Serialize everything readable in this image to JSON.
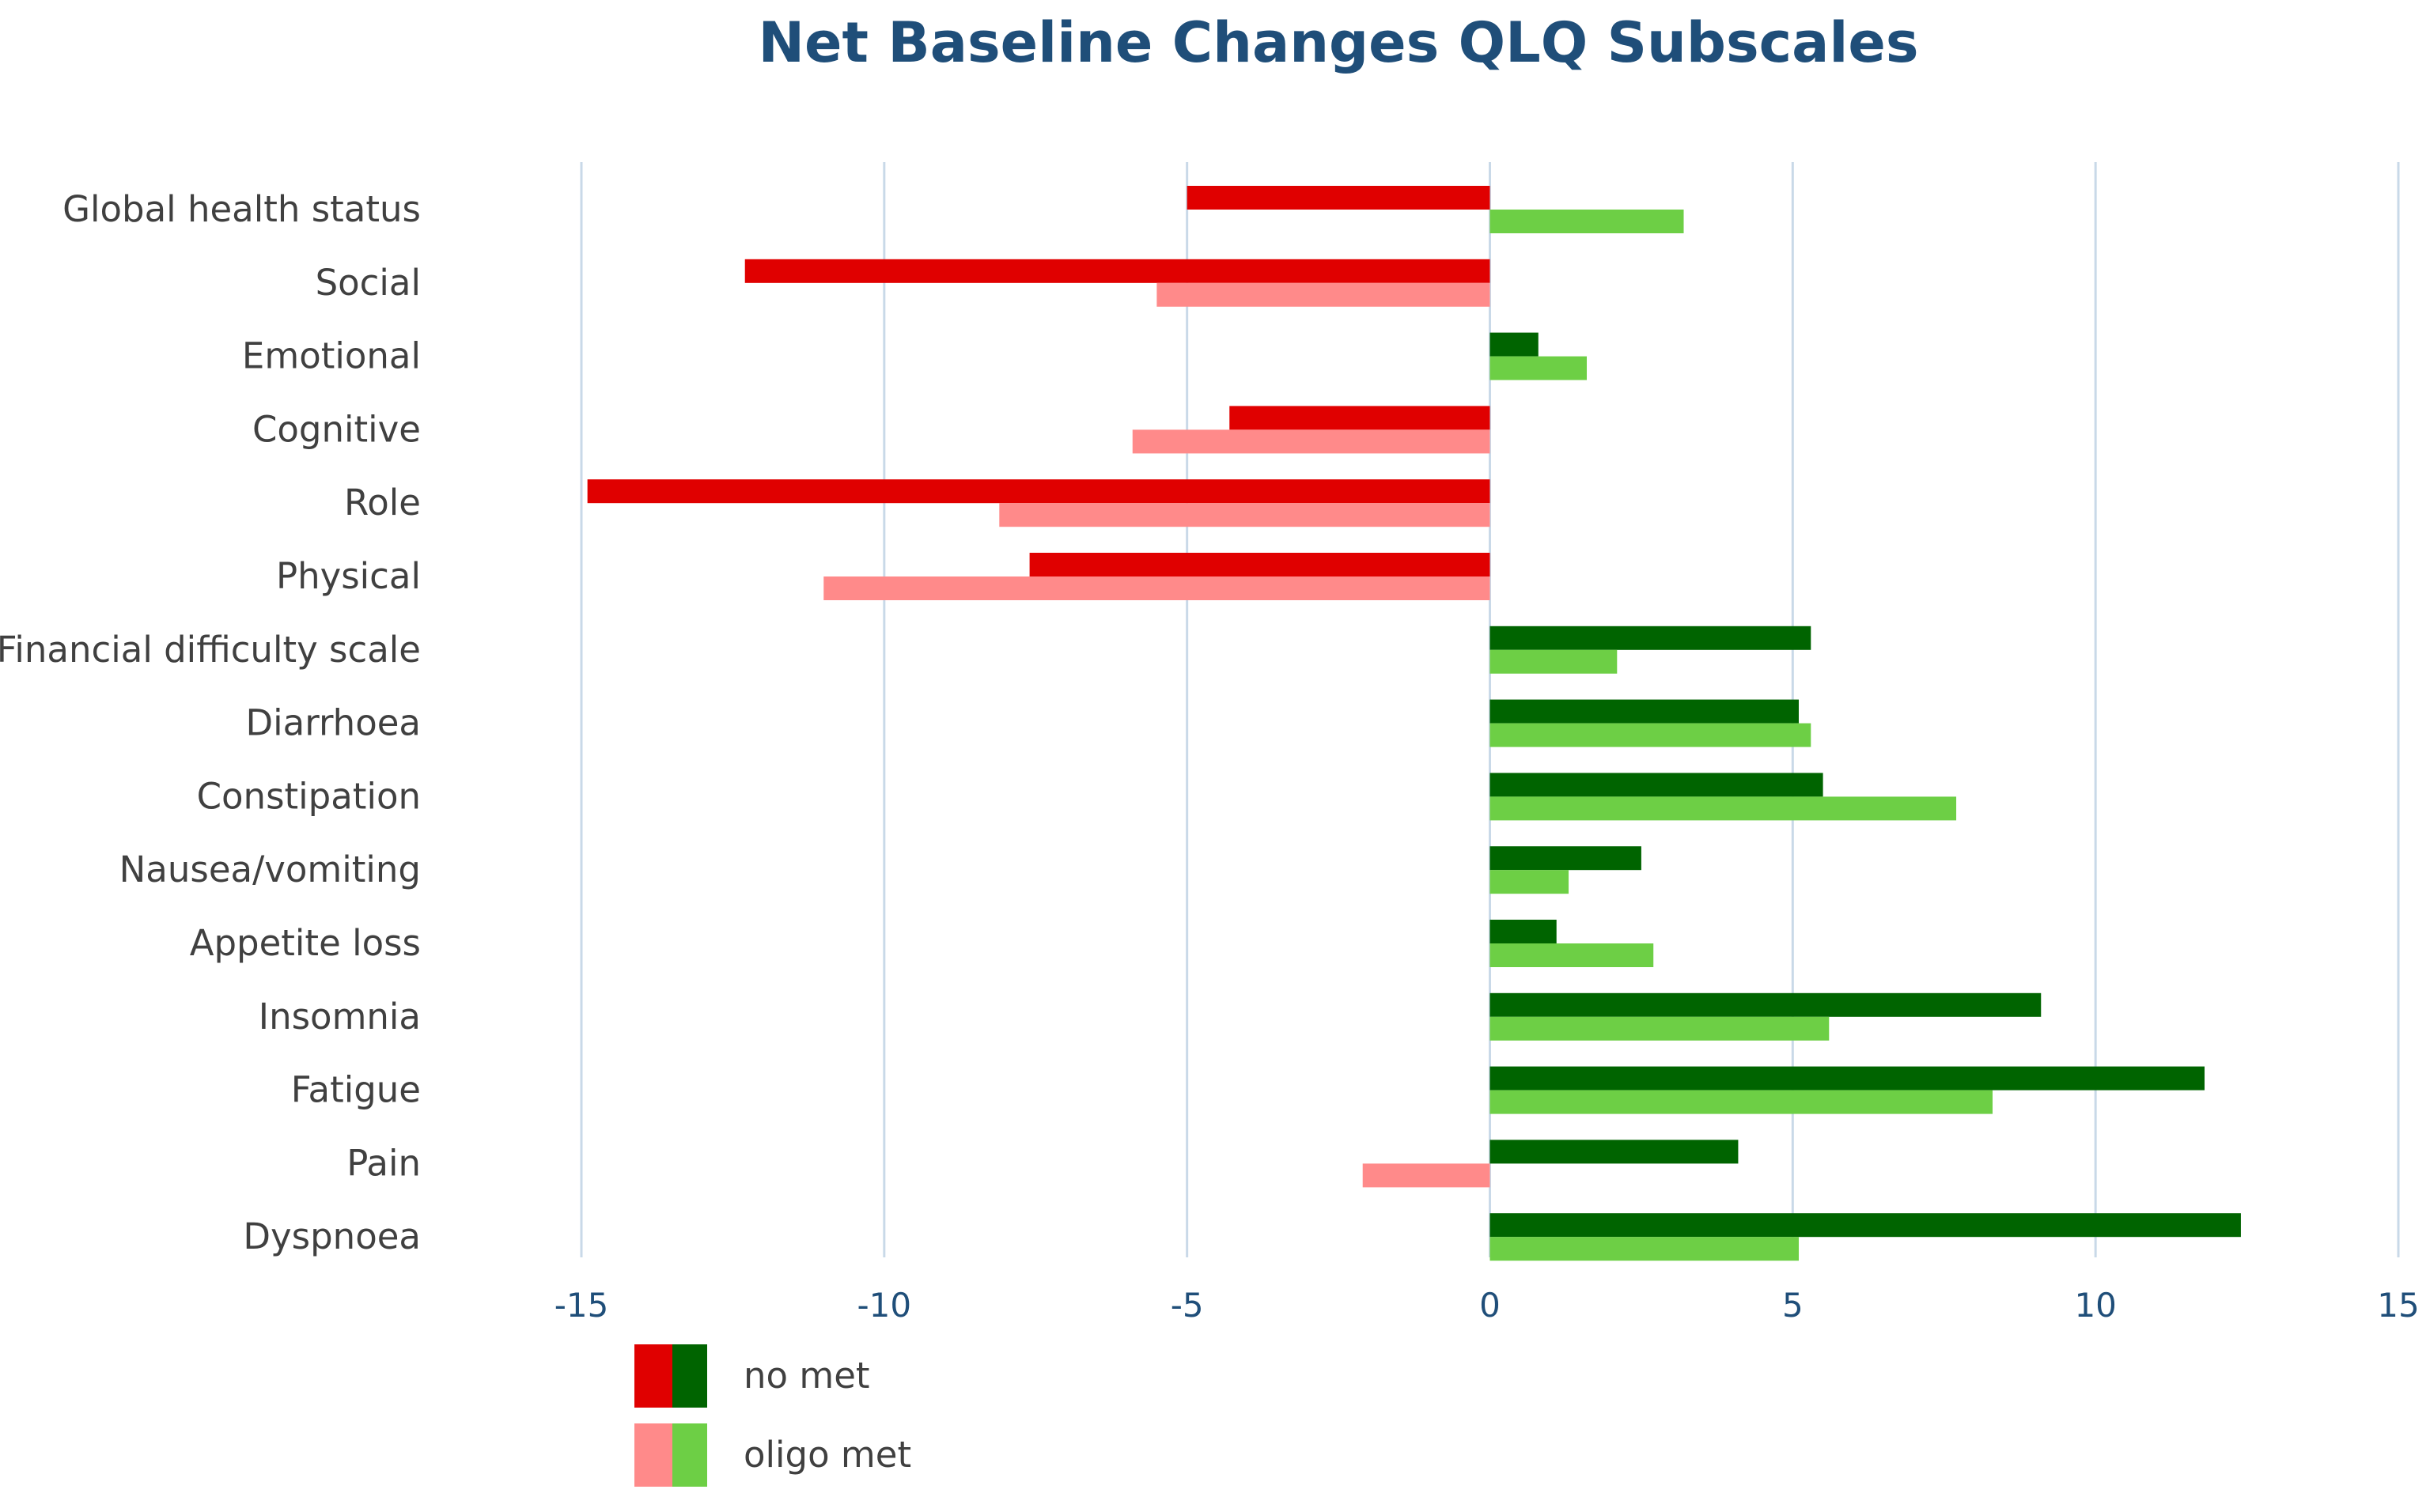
{
  "chart_data": {
    "type": "bar",
    "orientation": "horizontal",
    "title": "Net Baseline Changes QLQ Subscales",
    "xlabel": "",
    "ylabel": "",
    "xlim": [
      -15,
      15
    ],
    "x_ticks": [
      -15,
      -10,
      -5,
      0,
      5,
      10,
      15
    ],
    "grid": true,
    "legend_position": "bottom-left",
    "categories": [
      "Global health status",
      "Social",
      "Emotional",
      "Cognitive",
      "Role",
      "Physical",
      "Financial difficulty scale",
      "Diarrhoea",
      "Constipation",
      "Nausea/vomiting",
      "Appetite loss",
      "Insomnia",
      "Fatigue",
      "Pain",
      "Dyspnoea"
    ],
    "series": [
      {
        "name": "no met",
        "negative_color": "#e00000",
        "positive_color": "#006400",
        "values": [
          -5.0,
          -12.3,
          0.8,
          -4.3,
          -14.9,
          -7.6,
          5.3,
          5.1,
          5.5,
          2.5,
          1.1,
          9.1,
          11.8,
          4.1,
          12.4
        ]
      },
      {
        "name": "oligo met",
        "negative_color": "#ff8a8a",
        "positive_color": "#6dcf45",
        "values": [
          3.2,
          -5.5,
          1.6,
          -5.9,
          -8.1,
          -11.0,
          2.1,
          5.3,
          7.7,
          1.3,
          2.7,
          5.6,
          8.3,
          -2.1,
          5.1
        ]
      }
    ]
  }
}
